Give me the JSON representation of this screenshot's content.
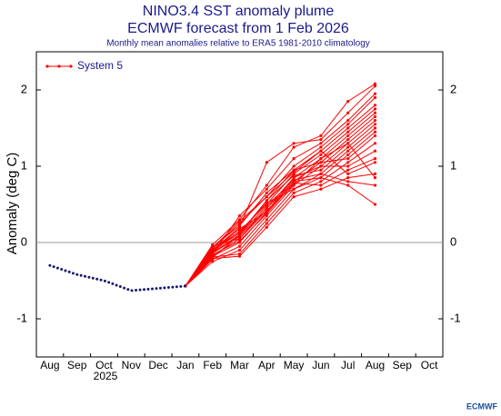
{
  "chart_data": {
    "type": "plume",
    "title": "NINO3.4 SST anomaly plume",
    "subtitle": "ECMWF forecast from 1 Feb 2026",
    "note": "Monthly mean anomalies relative to ERA5 1981-2010 climatology",
    "y_label": "Anomaly (deg C)",
    "year_label": "2025",
    "credit": "ECMWF",
    "categories": [
      "Aug",
      "Sep",
      "Oct",
      "Nov",
      "Dec",
      "Jan",
      "Feb",
      "Mar",
      "Apr",
      "May",
      "Jun",
      "Jul",
      "Aug",
      "Sep",
      "Oct"
    ],
    "ylim": [
      -1.5,
      2.5
    ],
    "yticks": [
      -1,
      0,
      1,
      2
    ],
    "zero_line": true,
    "legend": "top-left",
    "observed": {
      "color": "#1b1b6b",
      "values": [
        -0.3,
        -0.42,
        -0.5,
        -0.63,
        -0.6,
        -0.57,
        null,
        null,
        null,
        null,
        null,
        null,
        null,
        null,
        null
      ]
    },
    "forecast": {
      "name": "System 5",
      "color": "#ff0000",
      "members": [
        [
          null,
          null,
          null,
          null,
          null,
          -0.57,
          -0.03,
          0.3,
          0.75,
          1.25,
          1.4,
          1.85,
          2.08,
          null,
          null
        ],
        [
          null,
          null,
          null,
          null,
          null,
          -0.57,
          -0.1,
          0.2,
          1.05,
          1.3,
          1.35,
          1.7,
          2.05,
          null,
          null
        ],
        [
          null,
          null,
          null,
          null,
          null,
          -0.57,
          -0.15,
          0.35,
          0.7,
          1.1,
          1.3,
          1.6,
          1.95,
          null,
          null
        ],
        [
          null,
          null,
          null,
          null,
          null,
          -0.57,
          -0.08,
          0.25,
          0.6,
          1.0,
          1.25,
          1.55,
          1.9,
          null,
          null
        ],
        [
          null,
          null,
          null,
          null,
          null,
          -0.57,
          -0.2,
          0.1,
          0.55,
          0.95,
          1.2,
          1.5,
          1.8,
          null,
          null
        ],
        [
          null,
          null,
          null,
          null,
          null,
          -0.57,
          -0.12,
          0.15,
          0.5,
          0.9,
          1.15,
          1.45,
          1.75,
          null,
          null
        ],
        [
          null,
          null,
          null,
          null,
          null,
          -0.57,
          -0.05,
          0.05,
          0.45,
          0.85,
          1.1,
          1.4,
          1.7,
          null,
          null
        ],
        [
          null,
          null,
          null,
          null,
          null,
          -0.57,
          -0.18,
          0.0,
          0.4,
          0.8,
          1.05,
          1.35,
          1.65,
          null,
          null
        ],
        [
          null,
          null,
          null,
          null,
          null,
          -0.57,
          -0.22,
          -0.05,
          0.35,
          0.75,
          1.0,
          1.3,
          1.6,
          null,
          null
        ],
        [
          null,
          null,
          null,
          null,
          null,
          -0.57,
          -0.1,
          0.12,
          0.55,
          0.88,
          0.95,
          1.25,
          1.55,
          null,
          null
        ],
        [
          null,
          null,
          null,
          null,
          null,
          -0.57,
          -0.25,
          -0.1,
          0.3,
          0.7,
          0.9,
          1.2,
          1.5,
          null,
          null
        ],
        [
          null,
          null,
          null,
          null,
          null,
          -0.57,
          -0.14,
          0.08,
          0.45,
          0.8,
          0.85,
          1.15,
          1.45,
          null,
          null
        ],
        [
          null,
          null,
          null,
          null,
          null,
          -0.57,
          -0.06,
          0.22,
          0.65,
          0.95,
          1.05,
          1.1,
          1.4,
          null,
          null
        ],
        [
          null,
          null,
          null,
          null,
          null,
          -0.57,
          -0.19,
          -0.15,
          0.25,
          0.65,
          0.8,
          1.05,
          1.3,
          null,
          null
        ],
        [
          null,
          null,
          null,
          null,
          null,
          -0.57,
          -0.11,
          0.18,
          0.4,
          0.85,
          1.0,
          1.0,
          1.2,
          null,
          null
        ],
        [
          null,
          null,
          null,
          null,
          null,
          -0.57,
          -0.16,
          0.02,
          0.38,
          0.78,
          0.75,
          0.95,
          1.1,
          null,
          null
        ],
        [
          null,
          null,
          null,
          null,
          null,
          -0.57,
          -0.07,
          0.28,
          0.6,
          0.92,
          1.2,
          0.9,
          1.05,
          null,
          null
        ],
        [
          null,
          null,
          null,
          null,
          null,
          -0.57,
          -0.21,
          -0.18,
          0.2,
          0.6,
          0.7,
          0.85,
          0.9,
          null,
          null
        ],
        [
          null,
          null,
          null,
          null,
          null,
          -0.57,
          -0.13,
          0.1,
          0.48,
          0.82,
          0.9,
          0.8,
          0.75,
          null,
          null
        ],
        [
          null,
          null,
          null,
          null,
          null,
          -0.57,
          -0.09,
          0.14,
          0.52,
          0.7,
          0.85,
          0.75,
          0.5,
          null,
          null
        ],
        [
          null,
          null,
          null,
          null,
          null,
          -0.57,
          -0.17,
          0.05,
          0.42,
          0.76,
          1.1,
          1.3,
          0.85,
          null,
          null
        ]
      ]
    }
  }
}
